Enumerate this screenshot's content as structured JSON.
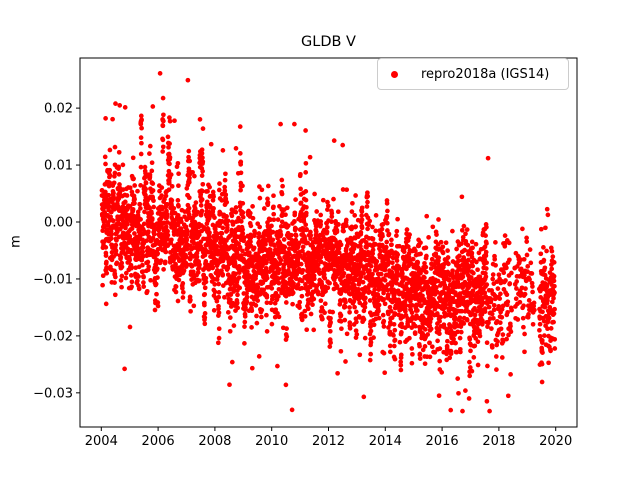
{
  "figure": {
    "title": "GLDB V",
    "ylabel": "m",
    "background": "#ffffff"
  },
  "legend": {
    "label": "repro2018a (IGS14)",
    "marker_color": "#ff0000",
    "position": "upper right",
    "border_color": "#cccccc"
  },
  "axes": {
    "x_tick_labels": [
      "2004",
      "2006",
      "2008",
      "2010",
      "2012",
      "2014",
      "2016",
      "2018",
      "2020"
    ],
    "y_tick_labels": [
      "0.02",
      "0.01",
      "0.00",
      "−0.01",
      "−0.02",
      "−0.03"
    ],
    "x_tick_values": [
      2004,
      2006,
      2008,
      2010,
      2012,
      2014,
      2016,
      2018,
      2020
    ],
    "y_tick_values": [
      0.02,
      0.01,
      0.0,
      -0.01,
      -0.02,
      -0.03
    ],
    "spine_color": "#000000",
    "tick_color": "#000000"
  },
  "chart_data": {
    "type": "scatter",
    "title": "GLDB V",
    "xlabel": "",
    "ylabel": "m",
    "grid": false,
    "legend_position": "upper right",
    "xlim": [
      2003.25,
      2020.75
    ],
    "ylim": [
      -0.036,
      0.0288
    ],
    "xticks": [
      2004,
      2006,
      2008,
      2010,
      2012,
      2014,
      2016,
      2018,
      2020
    ],
    "yticks": [
      0.02,
      0.01,
      0.0,
      -0.01,
      -0.02,
      -0.03
    ],
    "series": [
      {
        "name": "repro2018a (IGS14)",
        "color": "#ff0000",
        "marker": "point",
        "marker_size_px": 4.7,
        "description": "Daily vertical-position residuals (m); dense cloud drifting from ~0.00 m in 2004 down to ~-0.013 m by 2017, sparser clustered epochs 2017.6-2020"
      }
    ],
    "trend_knots": {
      "years": [
        2004.0,
        2005,
        2006,
        2007,
        2008,
        2009,
        2010,
        2011,
        2012,
        2013,
        2014,
        2015,
        2016,
        2017,
        2017.6,
        2018.4,
        2019.0,
        2019.98
      ],
      "means": [
        -0.0015,
        -0.002,
        -0.0025,
        -0.004,
        -0.0055,
        -0.0065,
        -0.007,
        -0.0065,
        -0.007,
        -0.0085,
        -0.01,
        -0.0115,
        -0.0125,
        -0.013,
        -0.0135,
        -0.012,
        -0.0125,
        -0.0125
      ]
    },
    "scatter_spec": {
      "seed": 42,
      "segments": [
        {
          "from": 2004.02,
          "to": 2017.6,
          "per_year": 300
        },
        {
          "from": 2017.62,
          "to": 2018.45,
          "per_year": 130
        },
        {
          "from": 2018.55,
          "to": 2019.25,
          "per_year": 110
        },
        {
          "from": 2019.42,
          "to": 2019.97,
          "per_year": 260
        }
      ],
      "point_sd": 0.0038,
      "cluster_sd": 0.0032,
      "clusters_per_year": 26,
      "skew_switch_year": 2009.0,
      "early_up_gain": 1.9,
      "late_down_gain": 1.35,
      "tail_eras": [
        {
          "until": 2008.5,
          "up_p": 0.012,
          "dn_p": 0.002
        },
        {
          "until": 2013.0,
          "up_p": 0.0045,
          "dn_p": 0.006
        },
        {
          "until": 2021.0,
          "up_p": 0.0015,
          "dn_p": 0.009
        }
      ],
      "tail_up_mag": [
        0.008,
        0.017
      ],
      "tail_dn_mag": [
        0.008,
        0.016
      ],
      "clip": [
        -0.0332,
        0.0262
      ]
    },
    "notable_points": [
      [
        2006.07,
        0.0261
      ],
      [
        2007.05,
        0.0249
      ],
      [
        2004.5,
        0.0208
      ],
      [
        2004.15,
        0.0182
      ],
      [
        2010.8,
        0.0172
      ],
      [
        2012.2,
        0.0143
      ],
      [
        2012.5,
        0.0135
      ],
      [
        2017.62,
        0.0112
      ],
      [
        2004.82,
        -0.0258
      ],
      [
        2010.5,
        -0.0286
      ],
      [
        2010.72,
        -0.033
      ],
      [
        2012.6,
        -0.0245
      ],
      [
        2016.55,
        -0.0275
      ],
      [
        2016.82,
        -0.0296
      ],
      [
        2016.95,
        -0.031
      ],
      [
        2017.05,
        -0.0262
      ],
      [
        2019.5,
        -0.0247
      ],
      [
        2018.9,
        -0.0228
      ]
    ]
  }
}
